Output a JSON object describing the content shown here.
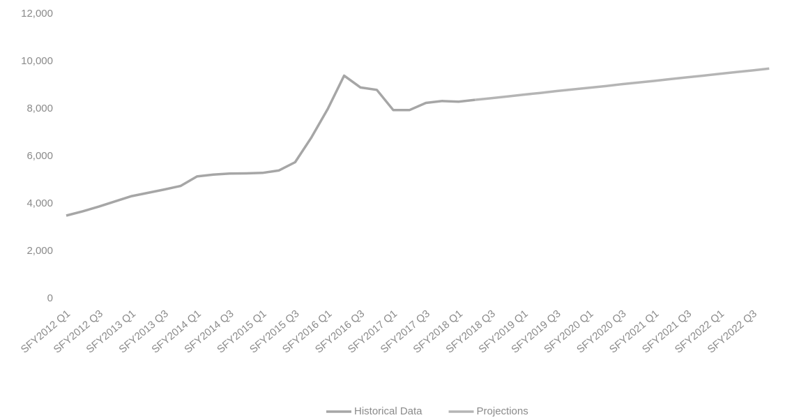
{
  "chart_data": {
    "type": "line",
    "categories": [
      "SFY2012 Q1",
      null,
      "SFY2012 Q3",
      null,
      "SFY2013 Q1",
      null,
      "SFY2013 Q3",
      null,
      "SFY2014 Q1",
      null,
      "SFY2014 Q3",
      null,
      "SFY2015 Q1",
      null,
      "SFY2015 Q3",
      null,
      "SFY2016 Q1",
      null,
      "SFY2016 Q3",
      null,
      "SFY2017 Q1",
      null,
      "SFY2017 Q3",
      null,
      "SFY2018 Q1",
      null,
      "SFY2018 Q3",
      null,
      "SFY2019 Q1",
      null,
      "SFY2019 Q3",
      null,
      "SFY2020 Q1",
      null,
      "SFY2020 Q3",
      null,
      "SFY2021 Q1",
      null,
      "SFY2021 Q3",
      null,
      "SFY2022 Q1",
      null,
      "SFY2022 Q3",
      null
    ],
    "series": [
      {
        "name": "Historical Data",
        "color": "#a6a6a6",
        "values": [
          3500,
          3680,
          3880,
          4100,
          4320,
          4460,
          4600,
          4750,
          5150,
          5230,
          5270,
          5280,
          5300,
          5400,
          5750,
          6800,
          8000,
          9400,
          8900,
          8800,
          7950,
          7950,
          8250,
          8330,
          8300,
          8380,
          null,
          null,
          null,
          null,
          null,
          null,
          null,
          null,
          null,
          null,
          null,
          null,
          null,
          null,
          null,
          null,
          null,
          null
        ]
      },
      {
        "name": "Projections",
        "color": "#b5b5b5",
        "values": [
          null,
          null,
          null,
          null,
          null,
          null,
          null,
          null,
          null,
          null,
          null,
          null,
          null,
          null,
          null,
          null,
          null,
          null,
          null,
          null,
          null,
          null,
          null,
          null,
          null,
          8380,
          8450,
          8520,
          8600,
          8670,
          8750,
          8820,
          8890,
          8960,
          9040,
          9110,
          9180,
          9260,
          9330,
          9400,
          9480,
          9550,
          9620,
          9700
        ]
      }
    ],
    "ylim": [
      0,
      12000
    ],
    "yticks": [
      0,
      {
        "value": 2000,
        "label": "2,000"
      },
      {
        "value": 4000,
        "label": "4,000"
      },
      {
        "value": 6000,
        "label": "6,000"
      },
      {
        "value": 8000,
        "label": "8,000"
      },
      {
        "value": 10000,
        "label": "10,000"
      },
      {
        "value": 12000,
        "label": "12,000"
      }
    ],
    "grid": false
  }
}
